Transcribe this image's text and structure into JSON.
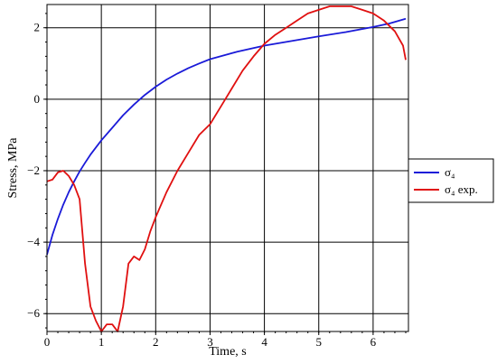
{
  "chart_data": {
    "type": "line",
    "xlabel": "Time, s",
    "ylabel": "Stress, MPa",
    "xlim": [
      0,
      6.65
    ],
    "ylim": [
      -6.5,
      2.65
    ],
    "xticks": [
      0,
      1,
      2,
      3,
      4,
      5,
      6
    ],
    "yticks": [
      -6,
      -4,
      -2,
      0,
      2
    ],
    "grid": true,
    "legend": "right",
    "series": [
      {
        "name": "σ₄",
        "color": "#1a1ad8",
        "x": [
          0,
          0.1,
          0.2,
          0.3,
          0.4,
          0.5,
          0.6,
          0.7,
          0.8,
          0.9,
          1.0,
          1.2,
          1.4,
          1.6,
          1.8,
          2.0,
          2.2,
          2.4,
          2.6,
          2.8,
          3.0,
          3.5,
          4.0,
          4.5,
          5.0,
          5.5,
          6.0,
          6.3,
          6.6
        ],
        "y": [
          -4.35,
          -3.8,
          -3.35,
          -2.95,
          -2.6,
          -2.3,
          -2.02,
          -1.78,
          -1.55,
          -1.35,
          -1.15,
          -0.8,
          -0.45,
          -0.15,
          0.12,
          0.35,
          0.55,
          0.72,
          0.87,
          1.0,
          1.12,
          1.33,
          1.5,
          1.63,
          1.76,
          1.88,
          2.02,
          2.12,
          2.25
        ]
      },
      {
        "name": "σ₄ exp.",
        "color": "#e01010",
        "x": [
          0,
          0.1,
          0.2,
          0.3,
          0.4,
          0.5,
          0.6,
          0.7,
          0.8,
          0.9,
          1.0,
          1.1,
          1.2,
          1.3,
          1.4,
          1.5,
          1.6,
          1.7,
          1.8,
          1.9,
          2.0,
          2.2,
          2.4,
          2.6,
          2.8,
          3.0,
          3.2,
          3.4,
          3.6,
          3.8,
          4.0,
          4.2,
          4.4,
          4.6,
          4.8,
          5.0,
          5.2,
          5.4,
          5.6,
          5.8,
          6.0,
          6.2,
          6.4,
          6.55,
          6.6
        ],
        "y": [
          -2.3,
          -2.25,
          -2.05,
          -2.0,
          -2.15,
          -2.4,
          -2.8,
          -4.6,
          -5.8,
          -6.2,
          -6.5,
          -6.3,
          -6.3,
          -6.5,
          -5.8,
          -4.6,
          -4.4,
          -4.5,
          -4.2,
          -3.7,
          -3.3,
          -2.6,
          -2.0,
          -1.5,
          -1.0,
          -0.7,
          -0.2,
          0.3,
          0.8,
          1.2,
          1.55,
          1.8,
          2.0,
          2.2,
          2.4,
          2.5,
          2.6,
          2.6,
          2.6,
          2.5,
          2.4,
          2.2,
          1.9,
          1.5,
          1.1
        ]
      }
    ]
  }
}
